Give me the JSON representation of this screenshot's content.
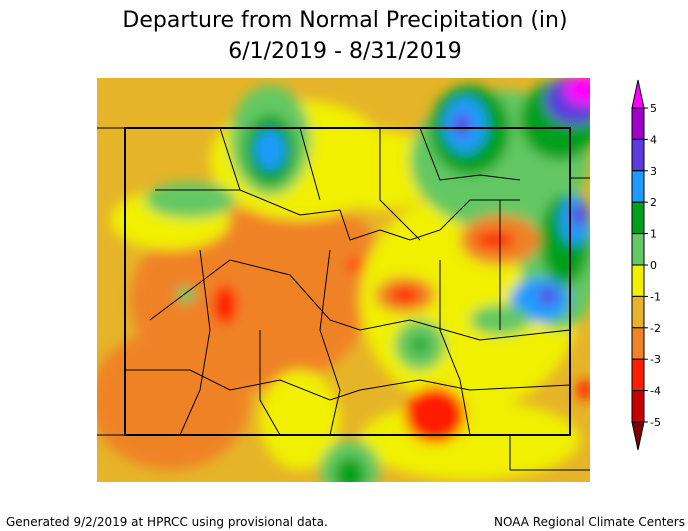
{
  "title": "Departure from Normal Precipitation (in)",
  "subtitle": "6/1/2019 - 8/31/2019",
  "legend": {
    "ticks": [
      5,
      4,
      3,
      2,
      1,
      0,
      -1,
      -2,
      -3,
      -4,
      -5
    ],
    "colors": [
      "#ff00ff",
      "#a000c8",
      "#5a3cdc",
      "#1e9bff",
      "#00a01e",
      "#64c864",
      "#f0f000",
      "#e6b428",
      "#f08228",
      "#ff1e00",
      "#c80000",
      "#800000"
    ]
  },
  "footer": {
    "left": "Generated 9/2/2019 at HPRCC using provisional data.",
    "right": "NOAA Regional Climate Centers"
  }
}
